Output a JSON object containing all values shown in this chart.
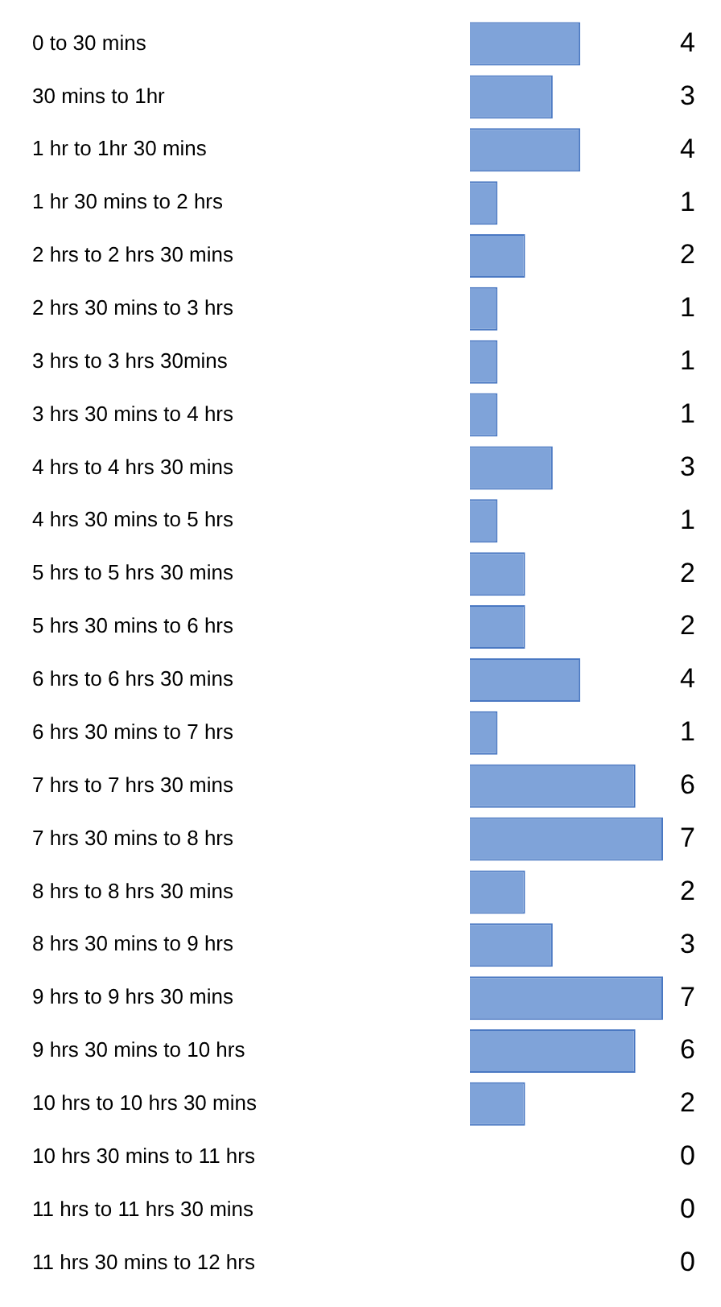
{
  "chart_data": {
    "type": "bar",
    "orientation": "horizontal",
    "categories": [
      "0 to 30 mins",
      "30 mins to 1hr",
      "1 hr to 1hr 30 mins",
      "1 hr 30 mins to 2 hrs",
      "2 hrs to 2 hrs 30 mins",
      "2 hrs 30 mins to 3 hrs",
      "3 hrs to 3 hrs 30mins",
      "3 hrs 30 mins to 4 hrs",
      "4 hrs to 4 hrs 30 mins",
      "4 hrs 30 mins to 5 hrs",
      "5 hrs to 5 hrs 30 mins",
      "5 hrs 30 mins to 6 hrs",
      "6 hrs to 6 hrs 30 mins",
      "6 hrs 30 mins to 7 hrs",
      "7 hrs to 7 hrs 30 mins",
      "7 hrs 30 mins to 8 hrs",
      "8 hrs to 8 hrs 30 mins",
      "8 hrs 30 mins to 9 hrs",
      "9 hrs to 9 hrs 30 mins",
      "9 hrs 30 mins to 10 hrs",
      "10 hrs to 10 hrs 30 mins",
      "10 hrs 30 mins to 11 hrs",
      "11 hrs to 11 hrs 30 mins",
      "11 hrs 30 mins to 12 hrs"
    ],
    "values": [
      4,
      3,
      4,
      1,
      2,
      1,
      1,
      1,
      3,
      1,
      2,
      2,
      4,
      1,
      6,
      7,
      2,
      3,
      7,
      6,
      2,
      0,
      0,
      0
    ],
    "color": "#7fa3d9",
    "data_labels": true,
    "grid": false,
    "legend": false
  }
}
